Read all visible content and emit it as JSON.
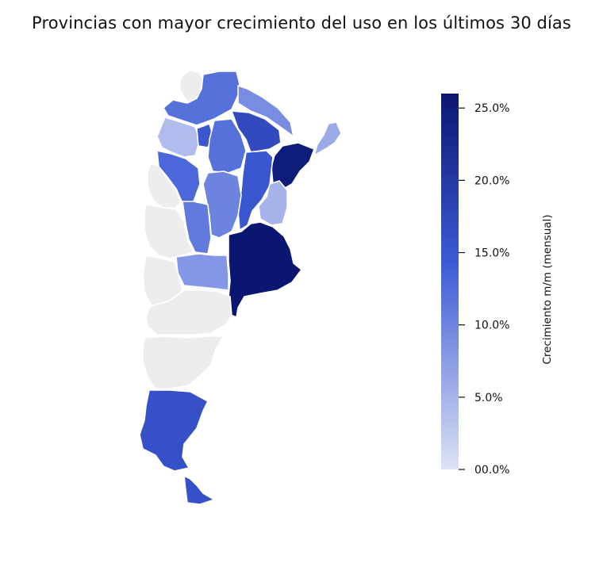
{
  "title": "Provincias con mayor crecimiento del uso en los últimos 30 días",
  "legend": {
    "title": "Crecimiento m/m (mensual)",
    "min": 0,
    "max": 26,
    "ticks": [
      {
        "value": 25,
        "label": "25.0%"
      },
      {
        "value": 20,
        "label": "20.0%"
      },
      {
        "value": 15,
        "label": "15.0%"
      },
      {
        "value": 10,
        "label": "10.0%"
      },
      {
        "value": 5,
        "label": "5.0%"
      },
      {
        "value": 0,
        "label": "00.0%"
      }
    ],
    "color_low": "#dde3f5",
    "color_mid": "#3d5bd6",
    "color_high": "#0a1670",
    "no_data_color": "#ededed"
  },
  "provinces": [
    {
      "id": "jujuy",
      "value": null
    },
    {
      "id": "salta",
      "value": 12
    },
    {
      "id": "formosa",
      "value": 9
    },
    {
      "id": "chaco",
      "value": 17
    },
    {
      "id": "misiones",
      "value": 6
    },
    {
      "id": "catamarca",
      "value": 4
    },
    {
      "id": "tucuman",
      "value": 15
    },
    {
      "id": "santiago-del-estero",
      "value": 12
    },
    {
      "id": "corrientes",
      "value": 25
    },
    {
      "id": "la-rioja",
      "value": 13
    },
    {
      "id": "santa-fe",
      "value": 15
    },
    {
      "id": "entre-rios",
      "value": 5
    },
    {
      "id": "san-juan",
      "value": null
    },
    {
      "id": "cordoba",
      "value": 10
    },
    {
      "id": "san-luis",
      "value": 11
    },
    {
      "id": "mendoza",
      "value": null
    },
    {
      "id": "la-pampa",
      "value": 8
    },
    {
      "id": "buenos-aires",
      "value": 26
    },
    {
      "id": "neuquen",
      "value": null
    },
    {
      "id": "rio-negro",
      "value": null
    },
    {
      "id": "chubut",
      "value": null
    },
    {
      "id": "santa-cruz",
      "value": 16
    },
    {
      "id": "tierra-del-fuego",
      "value": 16
    }
  ]
}
